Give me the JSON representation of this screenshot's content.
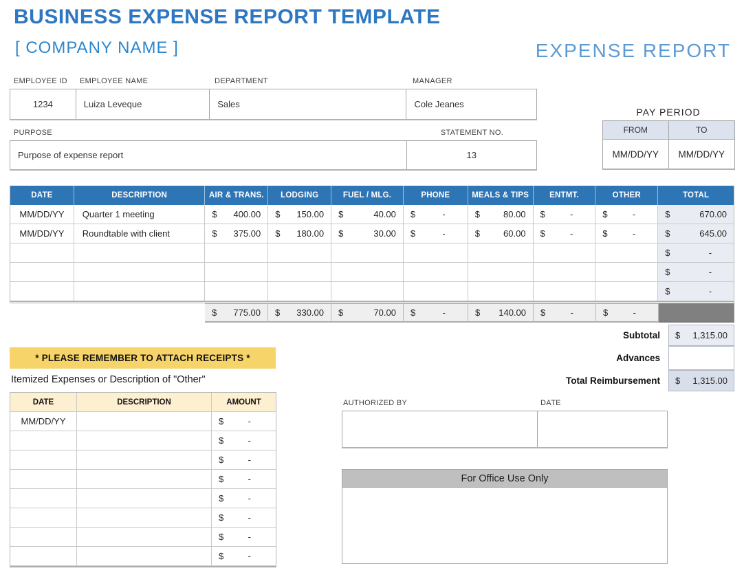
{
  "header": {
    "title": "BUSINESS EXPENSE REPORT TEMPLATE",
    "company": "[ COMPANY NAME ]",
    "report_label": "EXPENSE REPORT"
  },
  "colors": {
    "title_blue": "#2e78c2",
    "light_blue": "#5b9bd5",
    "table_header_blue": "#2e75b6",
    "banner_yellow": "#f6d469",
    "itemized_header_cream": "#fcf0d0",
    "total_column_bg": "#e9edf3",
    "totals_row_bg": "#efefef",
    "dark_cell_gray": "#808080",
    "subtotal_bg": "#e9edf3",
    "reimbursement_bg": "#d9dfea",
    "pay_period_header_bg": "#dce3ee",
    "office_band_gray": "#bfbfbf"
  },
  "employee": {
    "id_label": "EMPLOYEE ID",
    "id": "1234",
    "name_label": "EMPLOYEE NAME",
    "name": "Luiza Leveque",
    "department_label": "DEPARTMENT",
    "department": "Sales",
    "manager_label": "MANAGER",
    "manager": "Cole Jeanes",
    "purpose_label": "PURPOSE",
    "purpose": "Purpose of expense report",
    "statement_label": "STATEMENT NO.",
    "statement_no": "13"
  },
  "pay_period": {
    "title": "PAY PERIOD",
    "from_label": "FROM",
    "to_label": "TO",
    "from_value": "MM/DD/YY",
    "to_value": "MM/DD/YY"
  },
  "expense_table": {
    "currency": "$",
    "headers": [
      "DATE",
      "DESCRIPTION",
      "AIR & TRANS.",
      "LODGING",
      "FUEL / MLG.",
      "PHONE",
      "MEALS & TIPS",
      "ENTMT.",
      "OTHER",
      "TOTAL"
    ],
    "rows": [
      {
        "date": "MM/DD/YY",
        "description": "Quarter 1 meeting",
        "amounts": [
          "400.00",
          "150.00",
          "40.00",
          "-",
          "80.00",
          "-",
          "-"
        ],
        "total": "670.00"
      },
      {
        "date": "MM/DD/YY",
        "description": "Roundtable with client",
        "amounts": [
          "375.00",
          "180.00",
          "30.00",
          "-",
          "60.00",
          "-",
          "-"
        ],
        "total": "645.00"
      },
      {
        "date": "",
        "description": "",
        "amounts": [
          "",
          "",
          "",
          "",
          "",
          "",
          ""
        ],
        "total": "-"
      },
      {
        "date": "",
        "description": "",
        "amounts": [
          "",
          "",
          "",
          "",
          "",
          "",
          ""
        ],
        "total": "-"
      },
      {
        "date": "",
        "description": "",
        "amounts": [
          "",
          "",
          "",
          "",
          "",
          "",
          ""
        ],
        "total": "-"
      }
    ],
    "column_totals": [
      "775.00",
      "330.00",
      "70.00",
      "-",
      "140.00",
      "-",
      "-"
    ]
  },
  "summary": {
    "subtotal_label": "Subtotal",
    "subtotal_value": "1,315.00",
    "advances_label": "Advances",
    "advances_value": "",
    "total_label": "Total Reimbursement",
    "total_value": "1,315.00"
  },
  "receipts_banner": "* PLEASE REMEMBER TO ATTACH RECEIPTS *",
  "itemized": {
    "title": "Itemized Expenses or Description of \"Other\"",
    "headers": [
      "DATE",
      "DESCRIPTION",
      "AMOUNT"
    ],
    "rows": [
      {
        "date": "MM/DD/YY",
        "description": "",
        "amount": "-"
      },
      {
        "date": "",
        "description": "",
        "amount": "-"
      },
      {
        "date": "",
        "description": "",
        "amount": "-"
      },
      {
        "date": "",
        "description": "",
        "amount": "-"
      },
      {
        "date": "",
        "description": "",
        "amount": "-"
      },
      {
        "date": "",
        "description": "",
        "amount": "-"
      },
      {
        "date": "",
        "description": "",
        "amount": "-"
      },
      {
        "date": "",
        "description": "",
        "amount": "-"
      }
    ]
  },
  "authorization": {
    "authorized_by_label": "AUTHORIZED BY",
    "date_label": "DATE"
  },
  "office_use": {
    "title": "For Office Use Only"
  }
}
